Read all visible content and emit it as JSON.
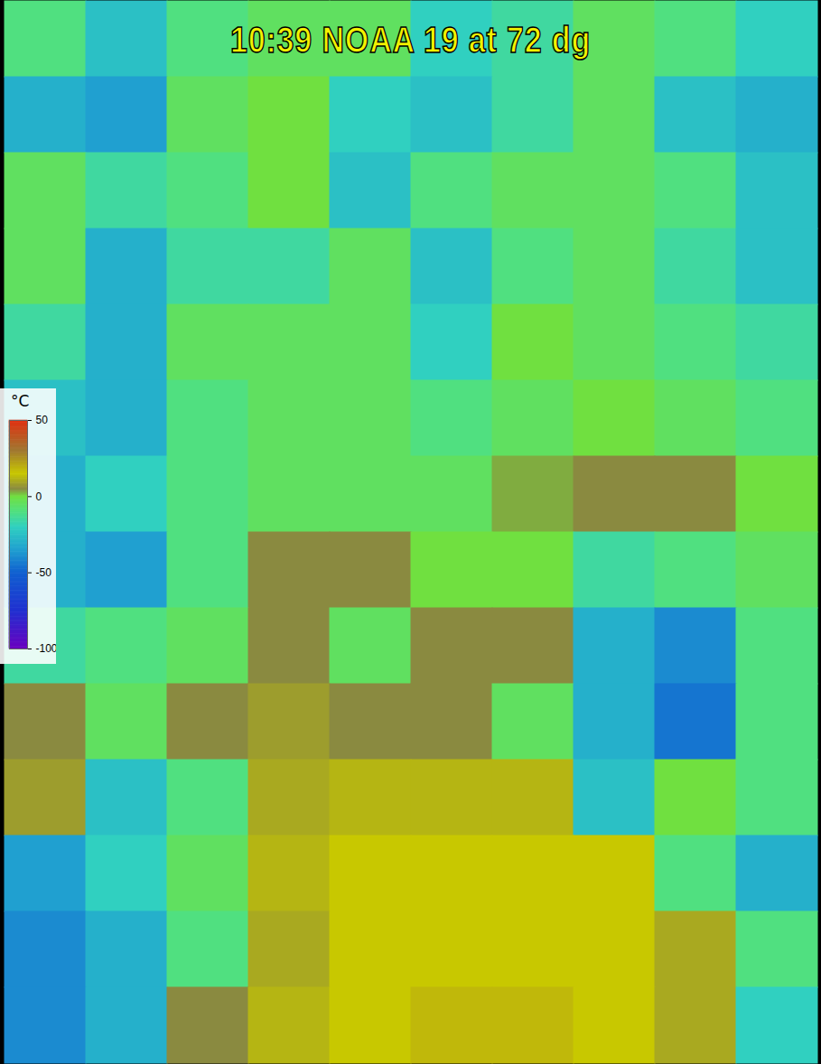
{
  "chart_data": {
    "type": "heatmap",
    "title": "10:39 NOAA 19 at 72 dg",
    "cells": [
      [
        -10,
        -25,
        -10,
        -5,
        -5,
        -20,
        -15,
        -5,
        -10,
        -20
      ],
      [
        -30,
        -35,
        -5,
        0,
        -20,
        -25,
        -15,
        -5,
        -25,
        -30
      ],
      [
        -5,
        -15,
        -10,
        0,
        -25,
        -10,
        -5,
        -5,
        -10,
        -25
      ],
      [
        -5,
        -30,
        -15,
        -15,
        -5,
        -25,
        -10,
        -5,
        -15,
        -25
      ],
      [
        -15,
        -30,
        -5,
        -5,
        -5,
        -20,
        0,
        -5,
        -10,
        -15
      ],
      [
        -25,
        -30,
        -10,
        -5,
        -5,
        -10,
        -5,
        0,
        -5,
        -10
      ],
      [
        -30,
        -20,
        -10,
        -5,
        -5,
        -5,
        3,
        5,
        5,
        0
      ],
      [
        -30,
        -35,
        -10,
        5,
        5,
        0,
        0,
        -15,
        -10,
        -5
      ],
      [
        -15,
        -10,
        -5,
        5,
        -5,
        5,
        5,
        -30,
        -40,
        -10
      ],
      [
        5,
        -5,
        5,
        8,
        5,
        5,
        -5,
        -30,
        -45,
        -10
      ],
      [
        8,
        -25,
        -10,
        10,
        12,
        12,
        12,
        -25,
        0,
        -10
      ],
      [
        -35,
        -20,
        -5,
        12,
        15,
        15,
        15,
        15,
        -10,
        -30
      ],
      [
        -40,
        -30,
        -10,
        10,
        15,
        15,
        15,
        15,
        10,
        -10
      ],
      [
        -40,
        -30,
        5,
        12,
        15,
        18,
        18,
        15,
        10,
        -20
      ]
    ],
    "colorbar": {
      "label": "°C",
      "range": [
        -100,
        50
      ],
      "ticks": [
        50,
        0,
        -50,
        -100
      ],
      "stops": [
        -100,
        -75,
        -50,
        -35,
        -20,
        -10,
        0,
        5,
        15,
        30,
        50
      ],
      "colors": [
        "#6a00c0",
        "#2030d0",
        "#1060d0",
        "#20a0d0",
        "#30d0c0",
        "#50e080",
        "#70e040",
        "#8a8a40",
        "#c8c800",
        "#a07830",
        "#e03010"
      ]
    }
  }
}
